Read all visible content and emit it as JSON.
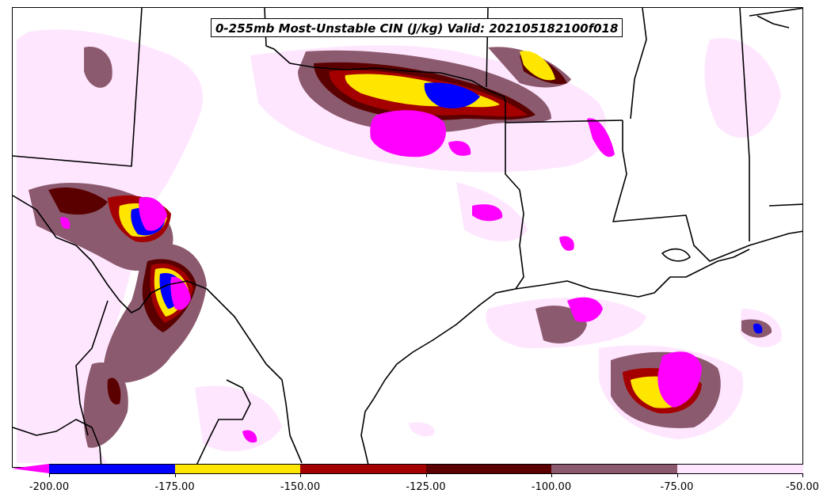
{
  "title": "0-255mb Most-Unstable CIN (J/kg) Valid: 202105182100f018",
  "colorbar": {
    "extend": "min",
    "under_color": "#ff00ff",
    "levels": [
      {
        "from": -200,
        "to": -175,
        "color": "#0000ff"
      },
      {
        "from": -175,
        "to": -150,
        "color": "#ffe600"
      },
      {
        "from": -150,
        "to": -125,
        "color": "#a50000"
      },
      {
        "from": -125,
        "to": -100,
        "color": "#5a0000"
      },
      {
        "from": -100,
        "to": -75,
        "color": "#8c5a6e"
      },
      {
        "from": -75,
        "to": -50,
        "color": "#ffe6ff"
      }
    ],
    "tick_labels": [
      "-200.00",
      "-175.00",
      "-150.00",
      "-125.00",
      "-100.00",
      "-75.00",
      "-50.00"
    ]
  },
  "colors": {
    "boundary": "#000000",
    "background": "#ffffff"
  },
  "region": "Texas, Oklahoma, Arkansas, Louisiana, northern Mexico, Gulf of Mexico"
}
